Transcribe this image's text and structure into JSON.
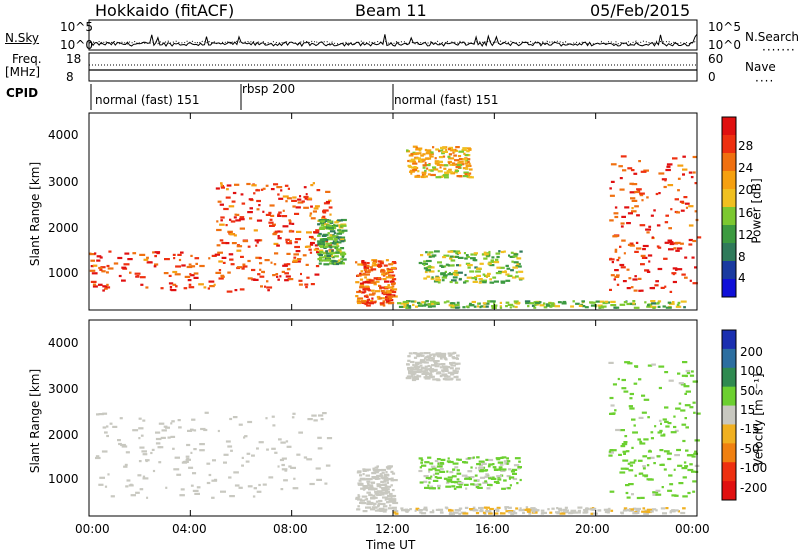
{
  "header": {
    "station": "Hokkaido (fitACF)",
    "beam": "Beam 11",
    "date": "05/Feb/2015"
  },
  "top_panels": {
    "nsky_label": "N.Sky",
    "nsky_ticks": [
      "10^5",
      "10^0"
    ],
    "nsearch_label": "N.Search",
    "nsearch_ticks": [
      "10^5",
      "10^0"
    ],
    "freq_label_1": "Freq.",
    "freq_label_2": "[MHz]",
    "freq_ticks": [
      "18",
      "8"
    ],
    "nave_label": "Nave",
    "nave_ticks": [
      "60",
      "0"
    ],
    "cpid_label": "CPID",
    "cpid_segments": [
      {
        "label": "normal (fast) 151",
        "start_hour": 0,
        "end_hour": 6
      },
      {
        "label": "rbsp 200",
        "start_hour": 6,
        "end_hour": 12
      },
      {
        "label": "normal (fast) 151",
        "start_hour": 12,
        "end_hour": 24
      }
    ]
  },
  "power_panel": {
    "ylabel": "Slant Range [km]",
    "yticks": [
      "4000",
      "3000",
      "2000",
      "1000"
    ],
    "colorbar_label": "Power [dB]",
    "colorbar_ticks": [
      "28",
      "24",
      "20",
      "16",
      "12",
      "8",
      "4"
    ],
    "colors": [
      "#1010d8",
      "#1a3aa0",
      "#2f7a5a",
      "#3c9a40",
      "#7cc830",
      "#f0c020",
      "#f5a010",
      "#f07010",
      "#ee3010",
      "#e01010"
    ]
  },
  "velocity_panel": {
    "ylabel": "Slant Range [km]",
    "yticks": [
      "4000",
      "3000",
      "2000",
      "1000"
    ],
    "colorbar_label": "Velocity [m s⁻¹]",
    "colorbar_ticks": [
      "200",
      "100",
      "50",
      "15",
      "-15",
      "-50",
      "-100",
      "-200"
    ],
    "colors": [
      "#1a2fb0",
      "#2c6ea0",
      "#2f8a50",
      "#6cd030",
      "#c8c8c0",
      "#f0b020",
      "#f08010",
      "#ee3010",
      "#e01010"
    ]
  },
  "xaxis": {
    "ticks": [
      "00:00",
      "04:00",
      "08:00",
      "12:00",
      "16:00",
      "20:00",
      "00:00"
    ],
    "label": "Time UT"
  },
  "chart_data": [
    {
      "type": "heatmap",
      "title": "Power",
      "x_range_hours": [
        0,
        24
      ],
      "y_range_km": [
        180,
        4500
      ],
      "colorbar_range_db": [
        0,
        32
      ],
      "regions": [
        {
          "t0": 0.0,
          "t1": 9.0,
          "r0": 600,
          "r1": 1500,
          "db": 27
        },
        {
          "t0": 5.0,
          "t1": 9.5,
          "r0": 1500,
          "r1": 3000,
          "db": 26
        },
        {
          "t0": 9.0,
          "t1": 10.0,
          "r0": 1200,
          "r1": 2200,
          "db": 12
        },
        {
          "t0": 10.5,
          "t1": 12.0,
          "r0": 300,
          "r1": 1300,
          "db": 25
        },
        {
          "t0": 12.0,
          "t1": 23.5,
          "r0": 250,
          "r1": 400,
          "db": 14
        },
        {
          "t0": 12.5,
          "t1": 15.0,
          "r0": 3100,
          "r1": 3800,
          "db": 20
        },
        {
          "t0": 13.0,
          "t1": 17.0,
          "r0": 800,
          "r1": 1500,
          "db": 14
        },
        {
          "t0": 20.5,
          "t1": 24.0,
          "r0": 600,
          "r1": 3600,
          "db": 27
        }
      ]
    },
    {
      "type": "heatmap",
      "title": "Velocity",
      "x_range_hours": [
        0,
        24
      ],
      "y_range_km": [
        180,
        4500
      ],
      "colorbar_range_ms": [
        -250,
        250
      ],
      "regions": [
        {
          "t0": 0.0,
          "t1": 9.5,
          "r0": 600,
          "r1": 2500,
          "v": 0
        },
        {
          "t0": 10.5,
          "t1": 12.0,
          "r0": 300,
          "r1": 1300,
          "v": 0
        },
        {
          "t0": 12.5,
          "t1": 14.5,
          "r0": 3200,
          "r1": 3800,
          "v": 0
        },
        {
          "t0": 13.0,
          "t1": 17.0,
          "r0": 800,
          "r1": 1500,
          "v": 35
        },
        {
          "t0": 12.0,
          "t1": 23.5,
          "r0": 250,
          "r1": 400,
          "v": -20
        },
        {
          "t0": 20.5,
          "t1": 24.0,
          "r0": 600,
          "r1": 3600,
          "v": 40
        }
      ]
    }
  ]
}
